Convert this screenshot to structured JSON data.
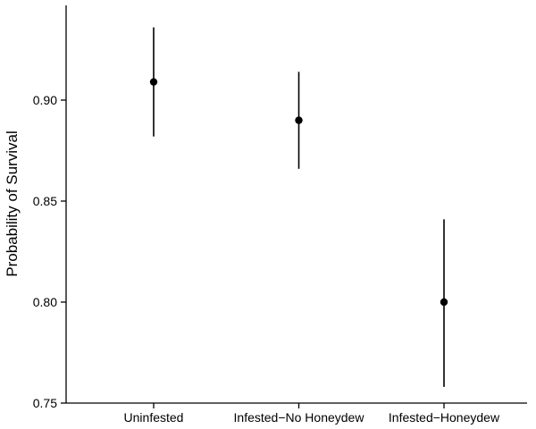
{
  "chart_data": {
    "type": "scatter",
    "title": "",
    "xlabel": "",
    "ylabel": "Probability of Survival",
    "ylim": [
      0.75,
      0.94
    ],
    "yticks": [
      0.75,
      0.8,
      0.85,
      0.9
    ],
    "categories": [
      "Uninfested",
      "Infested−No Honeydew",
      "Infested−Honeydew"
    ],
    "estimates": [
      0.909,
      0.89,
      0.8
    ],
    "lower": [
      0.882,
      0.866,
      0.758
    ],
    "upper": [
      0.936,
      0.914,
      0.841
    ],
    "grid": false,
    "legend": "none",
    "colors": {
      "mark": "#000000",
      "axis": "#000000"
    }
  }
}
